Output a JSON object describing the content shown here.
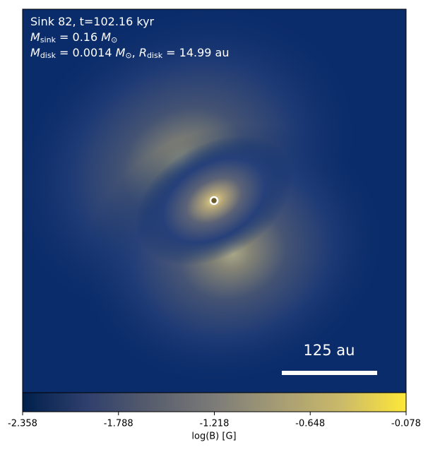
{
  "chart_data": {
    "type": "image",
    "annotation_lines": [
      [
        {
          "text": "Sink 82, t=102.16 kyr"
        }
      ],
      [
        {
          "text": "M",
          "italic": true
        },
        {
          "text": "sink",
          "sub": true
        },
        {
          "text": " = 0.16 "
        },
        {
          "text": "M",
          "italic": true
        },
        {
          "text": "⊙",
          "sub": true
        }
      ],
      [
        {
          "text": "M",
          "italic": true
        },
        {
          "text": "disk",
          "sub": true
        },
        {
          "text": " = 0.0014 "
        },
        {
          "text": "M",
          "italic": true
        },
        {
          "text": "⊙",
          "sub": true
        },
        {
          "text": ", "
        },
        {
          "text": "R",
          "italic": true
        },
        {
          "text": "disk",
          "sub": true
        },
        {
          "text": " = 14.99 au"
        }
      ]
    ],
    "scale_bar_label": "125 au",
    "colorbar": {
      "label": "log(B) [G]",
      "lim": [
        -2.358,
        -0.078
      ],
      "ticks": [
        -2.358,
        -1.788,
        -1.218,
        -0.648,
        -0.078
      ],
      "colors": [
        "#00204c",
        "#2f3f6d",
        "#575d6d",
        "#7c7b78",
        "#a59c74",
        "#cbba69",
        "#fee838"
      ]
    }
  }
}
